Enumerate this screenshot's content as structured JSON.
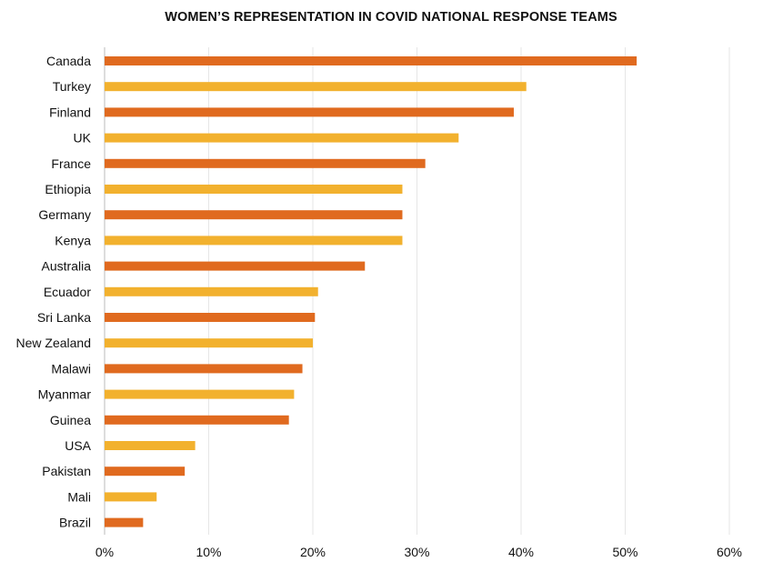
{
  "chart_data": {
    "type": "bar",
    "orientation": "horizontal",
    "title": "WOMEN’S REPRESENTATION IN COVID NATIONAL RESPONSE TEAMS",
    "xlabel": "",
    "ylabel": "",
    "categories": [
      "Canada",
      "Turkey",
      "Finland",
      "UK",
      "France",
      "Ethiopia",
      "Germany",
      "Kenya",
      "Australia",
      "Ecuador",
      "Sri Lanka",
      "New Zealand",
      "Malawi",
      "Myanmar",
      "Guinea",
      "USA",
      "Pakistan",
      "Mali",
      "Brazil"
    ],
    "values": [
      51.1,
      40.5,
      39.3,
      34.0,
      30.8,
      28.6,
      28.6,
      28.6,
      25.0,
      20.5,
      20.2,
      20.0,
      19.0,
      18.2,
      17.7,
      8.7,
      7.7,
      5.0,
      3.7
    ],
    "xlim": [
      0,
      60
    ],
    "ticks": [
      0,
      10,
      20,
      30,
      40,
      50,
      60
    ],
    "tick_labels": [
      "0%",
      "10%",
      "20%",
      "30%",
      "40%",
      "50%",
      "60%"
    ],
    "grid": true,
    "legend": "none",
    "colors": {
      "odd": "#e06a1f",
      "even": "#f2b12e",
      "grid": "#e6e6e6",
      "axis": "#bbbbbb"
    }
  }
}
